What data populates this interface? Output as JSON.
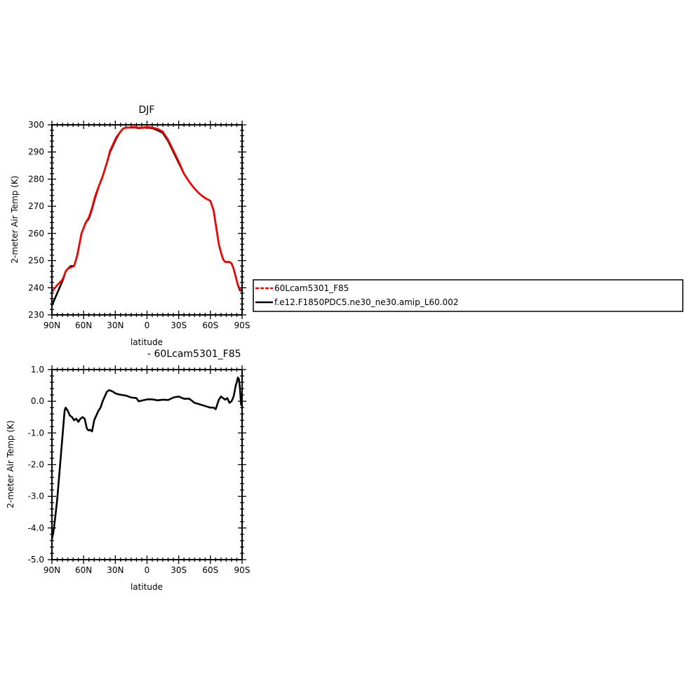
{
  "chart_data": [
    {
      "type": "line",
      "title": "DJF",
      "xlabel": "latitude",
      "ylabel": "2-meter Air Temp (K)",
      "xlim": [
        -90,
        90
      ],
      "ylim": [
        230,
        300
      ],
      "xticks": [
        -90,
        -60,
        -30,
        0,
        30,
        60,
        90
      ],
      "xtick_labels": [
        "90N",
        "60N",
        "30N",
        "0",
        "30S",
        "60S",
        "90S"
      ],
      "yticks": [
        230,
        240,
        250,
        260,
        270,
        280,
        290,
        300
      ],
      "ytick_labels": [
        "230",
        "240",
        "250",
        "260",
        "270",
        "280",
        "290",
        "300"
      ],
      "series": [
        {
          "name": "f.e12.F1850PDC5.ne30_ne30.amip_L60.002",
          "color": "#000000",
          "x": [
            -90,
            -85,
            -80,
            -77,
            -75,
            -72,
            -69,
            -66,
            -64,
            -62,
            -60,
            -58,
            -55,
            -52,
            -50,
            -48,
            -45,
            -42,
            -38,
            -35,
            -32,
            -29,
            -26,
            -23,
            -20,
            -17,
            -14,
            -11,
            -8,
            -5,
            0,
            5,
            10,
            15,
            20,
            25,
            30,
            35,
            40,
            45,
            50,
            55,
            60,
            63,
            66,
            68,
            70,
            72,
            74,
            76,
            78,
            80,
            82,
            84,
            86,
            88,
            90
          ],
          "y": [
            233.5,
            238,
            242.5,
            246,
            247,
            248,
            248,
            252,
            256,
            260,
            262,
            264,
            265.5,
            269,
            272,
            274.5,
            278,
            281,
            286,
            290,
            292.5,
            295,
            297,
            298.5,
            299,
            299,
            299,
            299,
            298.8,
            298.9,
            299,
            298.8,
            298,
            297,
            294,
            290,
            286,
            282,
            279,
            276.5,
            274.5,
            273,
            272,
            268.5,
            261,
            256,
            253,
            250.5,
            249.5,
            249.5,
            249.5,
            249,
            247,
            244,
            241,
            239,
            239
          ]
        },
        {
          "name": "60Lcam5301_F85",
          "color": "#ff0000",
          "x": [
            -90,
            -85,
            -80,
            -77,
            -75,
            -72,
            -69,
            -66,
            -64,
            -62,
            -60,
            -58,
            -55,
            -52,
            -50,
            -48,
            -45,
            -42,
            -38,
            -35,
            -32,
            -29,
            -26,
            -23,
            -20,
            -17,
            -14,
            -11,
            -8,
            -5,
            0,
            5,
            10,
            15,
            20,
            25,
            30,
            35,
            40,
            45,
            50,
            55,
            60,
            63,
            66,
            68,
            70,
            72,
            74,
            76,
            78,
            80,
            82,
            84,
            86,
            88,
            90
          ],
          "y": [
            238.5,
            241,
            243,
            246,
            247,
            247.5,
            248,
            252,
            256,
            260,
            262,
            264,
            266,
            269.5,
            272.5,
            275,
            278,
            281,
            286,
            290.5,
            293,
            295.5,
            297,
            298.5,
            299,
            299,
            299.2,
            299.2,
            299,
            299,
            299.2,
            299,
            298.5,
            297.5,
            294.5,
            290.5,
            286.5,
            282,
            279,
            276.5,
            274.5,
            273,
            272,
            268.5,
            261,
            256,
            253,
            250.5,
            249.5,
            249.5,
            249.5,
            249,
            247,
            244,
            241,
            239.5,
            239
          ]
        }
      ],
      "legend": "right, outside plot, boxed"
    },
    {
      "type": "line",
      "title": "- 60Lcam5301_F85",
      "xlabel": "latitude",
      "ylabel": "2-meter Air Temp (K)",
      "xlim": [
        -90,
        90
      ],
      "ylim": [
        -5.0,
        1.0
      ],
      "xticks": [
        -90,
        -60,
        -30,
        0,
        30,
        60,
        90
      ],
      "xtick_labels": [
        "90N",
        "60N",
        "30N",
        "0",
        "30S",
        "60S",
        "90S"
      ],
      "yticks": [
        -5.0,
        -4.0,
        -3.0,
        -2.0,
        -1.0,
        0.0,
        1.0
      ],
      "ytick_labels": [
        "-5.0",
        "-4.0",
        "-3.0",
        "-2.0",
        "-1.0",
        "0.0",
        "1.0"
      ],
      "series": [
        {
          "color": "#000000",
          "x": [
            -90,
            -88.5,
            -87,
            -85,
            -83,
            -81,
            -79,
            -78,
            -77,
            -76,
            -75,
            -73,
            -71,
            -69,
            -67,
            -65,
            -63,
            -61,
            -59,
            -58,
            -57,
            -56,
            -55,
            -54,
            -52,
            -50,
            -48,
            -46,
            -44,
            -42,
            -40,
            -38,
            -36,
            -34,
            -32,
            -30,
            -27,
            -24,
            -20,
            -15,
            -10,
            -8,
            -5,
            0,
            5,
            10,
            15,
            20,
            25,
            30,
            35,
            40,
            45,
            50,
            55,
            60,
            63,
            65,
            67,
            68,
            70,
            72,
            74,
            76,
            78,
            80,
            82,
            84,
            85,
            86,
            87,
            88,
            89,
            90
          ],
          "y": [
            -4.35,
            -4.1,
            -3.7,
            -3.1,
            -2.3,
            -1.5,
            -0.7,
            -0.3,
            -0.2,
            -0.25,
            -0.3,
            -0.45,
            -0.5,
            -0.6,
            -0.55,
            -0.65,
            -0.55,
            -0.5,
            -0.55,
            -0.7,
            -0.85,
            -0.9,
            -0.92,
            -0.9,
            -0.95,
            -0.6,
            -0.45,
            -0.3,
            -0.2,
            0.0,
            0.15,
            0.3,
            0.35,
            0.33,
            0.3,
            0.25,
            0.22,
            0.2,
            0.18,
            0.12,
            0.1,
            0.0,
            0.02,
            0.06,
            0.06,
            0.03,
            0.05,
            0.04,
            0.12,
            0.15,
            0.08,
            0.08,
            -0.05,
            -0.1,
            -0.15,
            -0.2,
            -0.2,
            -0.25,
            -0.05,
            0.05,
            0.15,
            0.1,
            0.05,
            0.1,
            -0.05,
            0.0,
            0.15,
            0.5,
            0.6,
            0.75,
            0.7,
            0.4,
            -0.1,
            -0.15
          ]
        }
      ]
    }
  ]
}
